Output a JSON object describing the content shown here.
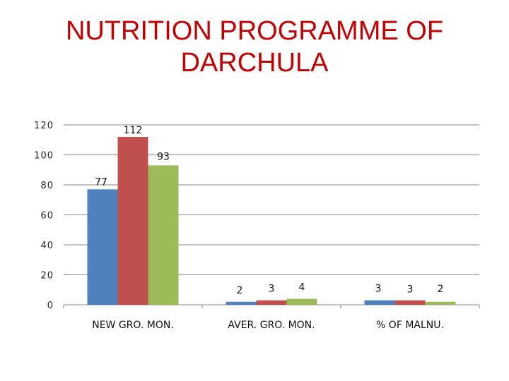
{
  "title": {
    "line1": "NUTRITION PROGRAMME OF",
    "line2": "DARCHULA"
  },
  "chart_data": {
    "type": "bar",
    "categories": [
      "NEW GRO. MON.",
      "AVER. GRO. MON.",
      "% OF MALNU."
    ],
    "series": [
      {
        "values": [
          77,
          2,
          3
        ],
        "color": "#4f81bd"
      },
      {
        "values": [
          112,
          3,
          3
        ],
        "color": "#c0504d"
      },
      {
        "values": [
          93,
          4,
          2
        ],
        "color": "#9bbb59"
      }
    ],
    "yticks": [
      0,
      20,
      40,
      60,
      80,
      100,
      120
    ],
    "ylim": [
      0,
      120
    ],
    "grid": true,
    "legend": "none",
    "data_labels": [
      [
        "77",
        "2",
        "3"
      ],
      [
        "112",
        "3",
        "3"
      ],
      [
        "93",
        "4",
        "2"
      ]
    ]
  }
}
